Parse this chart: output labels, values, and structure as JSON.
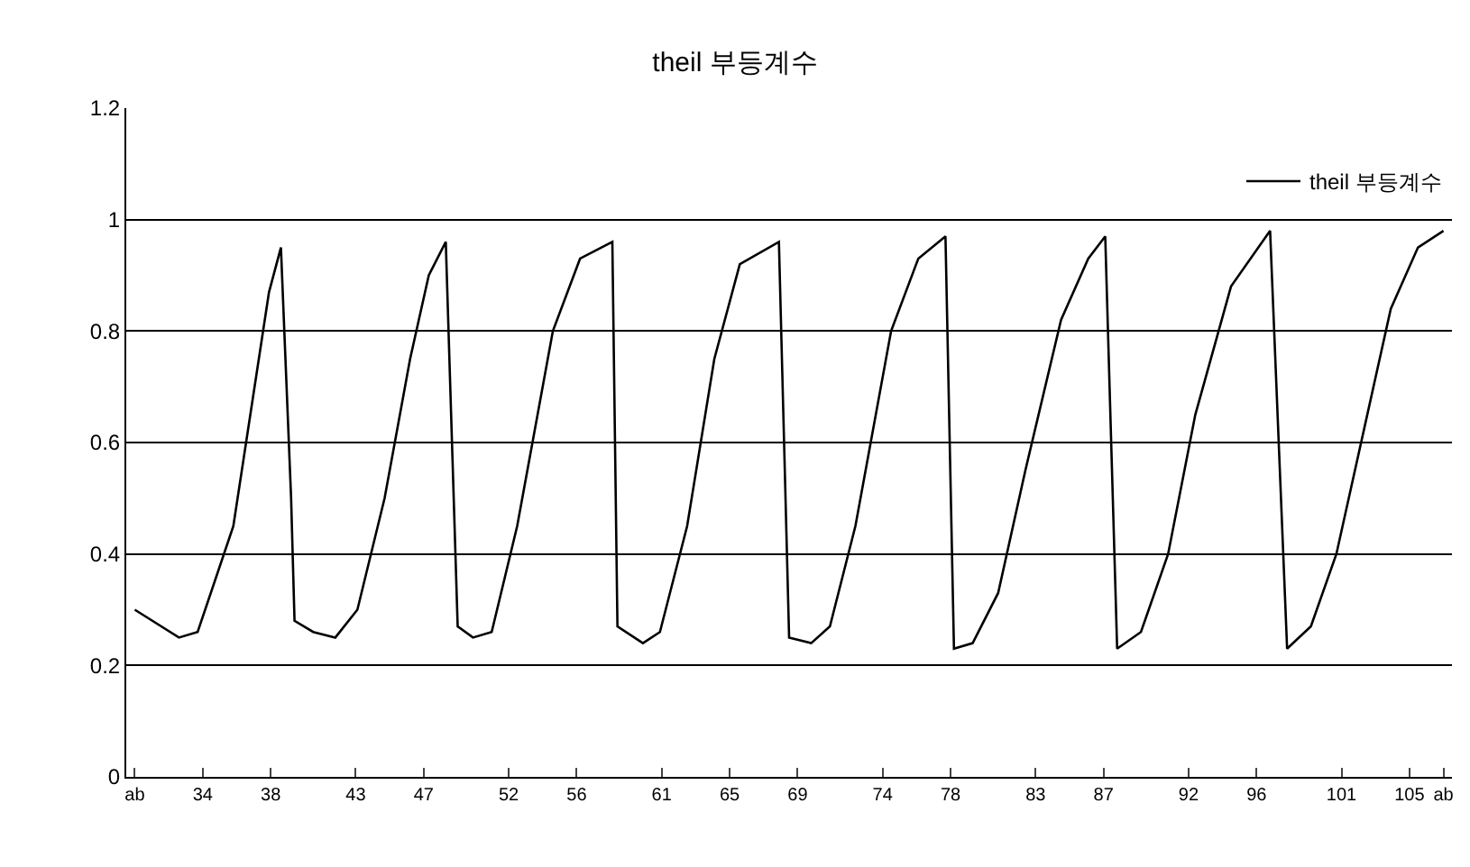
{
  "chart_data": {
    "type": "line",
    "title": "theil 부등계수",
    "xlim": [
      29.5,
      107.5
    ],
    "ylim": [
      0,
      1.2
    ],
    "xticks": [
      {
        "value": 30,
        "label": "ab"
      },
      34,
      38,
      43,
      47,
      52,
      56,
      61,
      65,
      69,
      74,
      78,
      83,
      87,
      92,
      96,
      101,
      105,
      {
        "value": 107,
        "label": "ab"
      }
    ],
    "yticks": [
      0,
      0.2,
      0.4,
      0.6,
      0.8,
      1,
      1.2
    ],
    "grid": "y",
    "legend": "top right",
    "marker": "none",
    "line_style": "solid",
    "series": [
      {
        "name": "theil 부등계수",
        "color": "#000000",
        "x": [
          30,
          32.6,
          33.7,
          35.8,
          37.3,
          37.9,
          38.6,
          39.2,
          39.4,
          40.5,
          41.8,
          43.1,
          44.7,
          46.2,
          47.3,
          48.3,
          49.0,
          49.9,
          51.0,
          52.5,
          54.6,
          56.2,
          58.1,
          58.4,
          59.9,
          60.9,
          62.5,
          64.1,
          65.6,
          67.9,
          68.5,
          69.8,
          70.9,
          72.4,
          74.5,
          76.1,
          77.7,
          78.2,
          79.3,
          80.8,
          82.4,
          84.5,
          86.1,
          87.1,
          87.8,
          89.2,
          90.8,
          92.4,
          94.5,
          96.8,
          97.8,
          99.2,
          100.7,
          102.3,
          103.9,
          105.5,
          107.0
        ],
        "values": [
          0.3,
          0.25,
          0.26,
          0.45,
          0.75,
          0.87,
          0.95,
          0.5,
          0.28,
          0.26,
          0.25,
          0.3,
          0.5,
          0.75,
          0.9,
          0.96,
          0.27,
          0.25,
          0.26,
          0.45,
          0.8,
          0.93,
          0.96,
          0.27,
          0.24,
          0.26,
          0.45,
          0.75,
          0.92,
          0.96,
          0.25,
          0.24,
          0.27,
          0.45,
          0.8,
          0.93,
          0.97,
          0.23,
          0.24,
          0.33,
          0.55,
          0.82,
          0.93,
          0.97,
          0.23,
          0.26,
          0.4,
          0.65,
          0.88,
          0.98,
          0.23,
          0.27,
          0.4,
          0.62,
          0.84,
          0.95,
          0.98
        ]
      }
    ]
  }
}
